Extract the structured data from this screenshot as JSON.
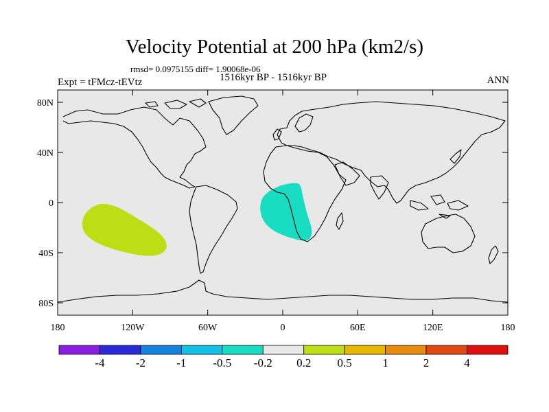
{
  "title": "Velocity Potential at 200 hPa (km2/s)",
  "stats": "rmsd= 0.0975155 diff= 1.90068e-06",
  "experiment": "Expt = tFMcz-tEVtz",
  "period": "1516kyr BP - 1516kyr BP",
  "season": "ANN",
  "axes": {
    "lat_labels": [
      "80N",
      "40N",
      "0",
      "40S",
      "80S"
    ],
    "lon_labels": [
      "180",
      "120W",
      "60W",
      "0",
      "60E",
      "120E",
      "180"
    ]
  },
  "colorbar": {
    "colors": [
      "#8a1ee0",
      "#2a2ad8",
      "#1582e0",
      "#10c2e6",
      "#19ddc2",
      "#e8e8e8",
      "#bdde14",
      "#e6b800",
      "#e88c10",
      "#e04a10",
      "#e01010"
    ],
    "labels": [
      "-4",
      "-2",
      "-1",
      "-0.5",
      "-0.2",
      "0.2",
      "0.5",
      "1",
      "2",
      "4"
    ]
  },
  "anomalies": [
    {
      "name": "south-pacific-positive-anomaly",
      "color": "#bdde14"
    },
    {
      "name": "west-africa-negative-anomaly",
      "color": "#19ddc2"
    }
  ],
  "colors": {
    "plot_background": "#e8e8e8",
    "coastline": "#000000"
  }
}
